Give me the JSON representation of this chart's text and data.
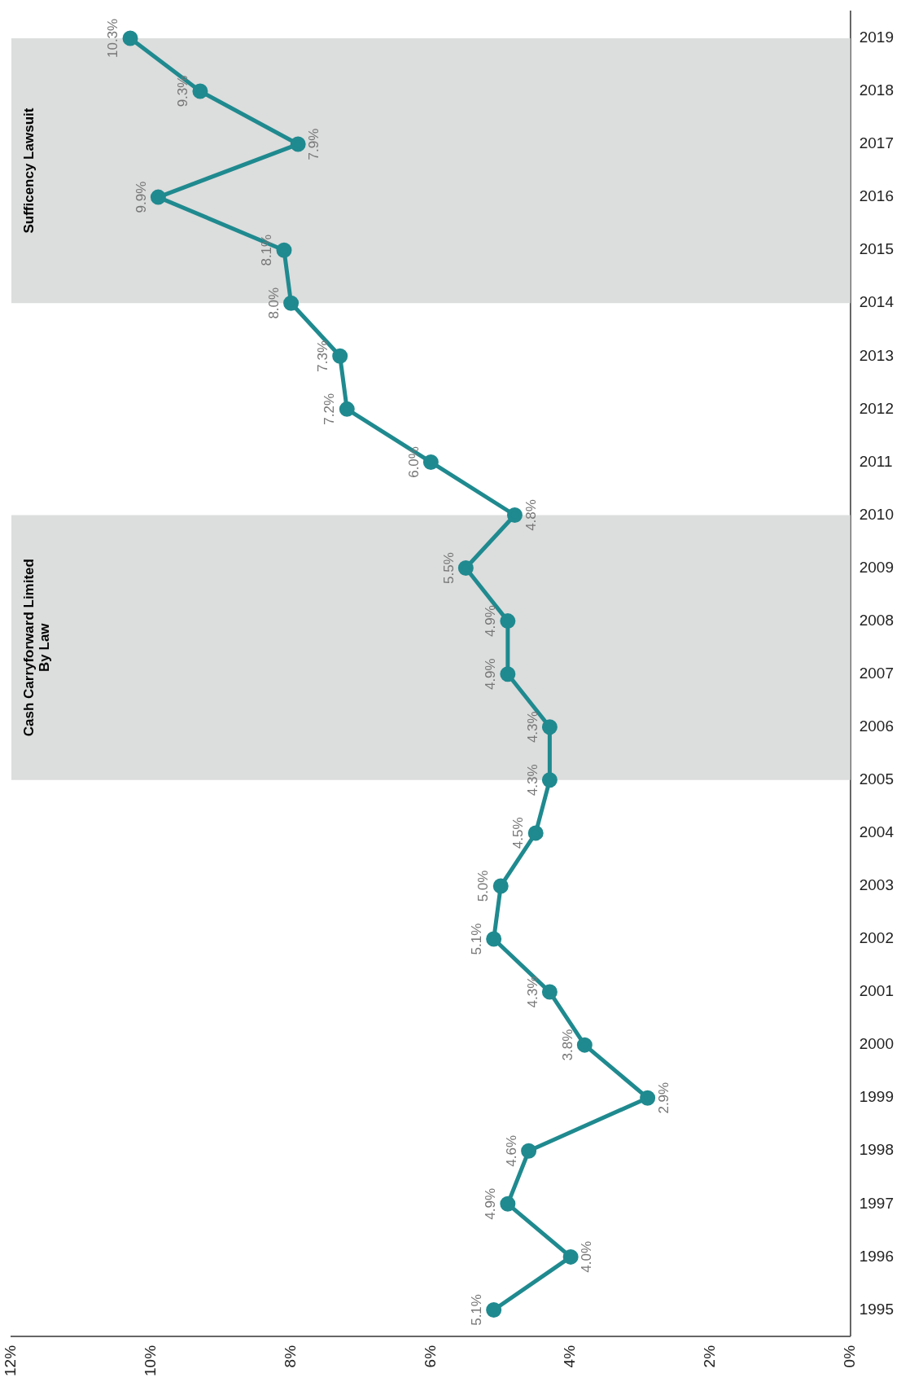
{
  "chart_data": {
    "type": "line",
    "orientation": "horizontal",
    "categories": [
      "2019",
      "2018",
      "2017",
      "2016",
      "2015",
      "2014",
      "2013",
      "2012",
      "2011",
      "2010",
      "2009",
      "2008",
      "2007",
      "2006",
      "2005",
      "2004",
      "2003",
      "2002",
      "2001",
      "2000",
      "1999",
      "1998",
      "1997",
      "1996",
      "1995"
    ],
    "values": [
      10.3,
      9.3,
      7.9,
      9.9,
      8.1,
      8.0,
      7.3,
      7.2,
      6.0,
      4.8,
      5.5,
      4.9,
      4.9,
      4.3,
      4.3,
      4.5,
      5.0,
      5.1,
      4.3,
      3.8,
      2.9,
      4.6,
      4.9,
      4.0,
      5.1
    ],
    "value_labels": [
      "10.3%",
      "9.3%",
      "7.9%",
      "9.9%",
      "8.1%",
      "8.0%",
      "7.3%",
      "7.2%",
      "6.0%",
      "4.8%",
      "5.5%",
      "4.9%",
      "4.9%",
      "4.3%",
      "4.3%",
      "4.5%",
      "5.0%",
      "5.1%",
      "4.3%",
      "3.8%",
      "2.9%",
      "4.6%",
      "4.9%",
      "4.0%",
      "5.1%"
    ],
    "color": "#1f8a8f",
    "marker": "circle",
    "xlim": [
      12,
      0
    ],
    "xticks": [
      {
        "value": 12,
        "label": "12%"
      },
      {
        "value": 10,
        "label": "10%"
      },
      {
        "value": 8,
        "label": "8%"
      },
      {
        "value": 6,
        "label": "6%"
      },
      {
        "value": 4,
        "label": "4%"
      },
      {
        "value": 2,
        "label": "2%"
      },
      {
        "value": 0,
        "label": "0%"
      }
    ],
    "bands": [
      {
        "axis": "y",
        "from": "2010",
        "to": "2005",
        "label": "Cash Carryforward Limited By Law",
        "color": "#dcdddd"
      },
      {
        "axis": "y",
        "from": "2019",
        "to": "2014",
        "label": "Sufficency Lawsuit",
        "color": "#dcdddd"
      }
    ]
  }
}
